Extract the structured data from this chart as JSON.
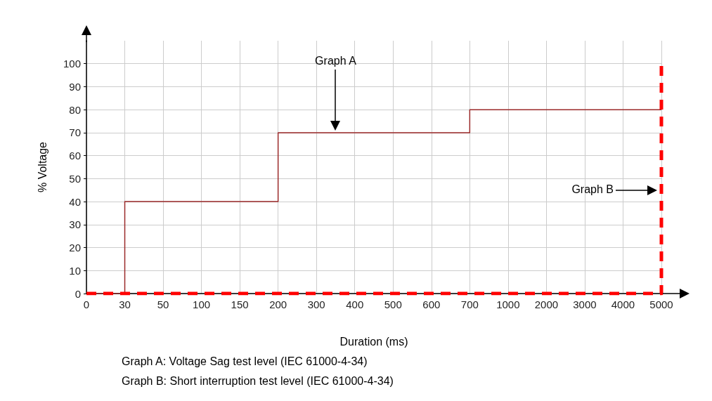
{
  "chart_data": {
    "type": "step",
    "xlabel": "Duration (ms)",
    "ylabel": "% Voltage",
    "categories": [
      "0",
      "30",
      "50",
      "100",
      "150",
      "200",
      "300",
      "400",
      "500",
      "600",
      "700",
      "1000",
      "2000",
      "3000",
      "4000",
      "5000"
    ],
    "series": [
      {
        "color": "#9b2a2a",
        "line_style": "solid",
        "values": [
          0,
          40,
          40,
          40,
          40,
          70,
          70,
          70,
          70,
          70,
          80,
          80,
          80,
          80,
          80,
          80
        ]
      },
      {
        "color": "#ff0000",
        "line_style": "dashed",
        "values": [
          0,
          0,
          0,
          0,
          0,
          0,
          0,
          0,
          0,
          0,
          0,
          0,
          0,
          0,
          0,
          100
        ]
      }
    ],
    "ylim": [
      0,
      110
    ],
    "yticks": [
      0,
      10,
      20,
      30,
      40,
      50,
      60,
      70,
      80,
      90,
      100
    ],
    "grid": true,
    "marker": "none",
    "annotations": [
      "Graph A",
      "Graph B",
      "Graph A: Voltage Sag test level (IEC 61000-4-34)",
      "Graph B: Short interruption test level (IEC 61000-4-34)"
    ]
  }
}
